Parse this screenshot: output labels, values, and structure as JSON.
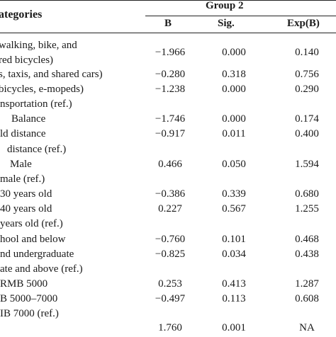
{
  "table": {
    "header": {
      "categories": "ategories",
      "group": "Group 2",
      "col_b": "B",
      "col_sig": "Sig.",
      "col_exp": "Exp(B)"
    },
    "rows": [
      {
        "label": "walking, bike, and",
        "b": "",
        "sig": "",
        "exp": ""
      },
      {
        "label": "red bicycles)",
        "b": "−1.966",
        "sig": "0.000",
        "exp": "0.140"
      },
      {
        "label": "s, taxis, and shared cars)",
        "b": "−0.280",
        "sig": "0.318",
        "exp": "0.756"
      },
      {
        "label": "bicycles, e-mopeds)",
        "b": "−1.238",
        "sig": "0.000",
        "exp": "0.290"
      },
      {
        "label": "nsportation (ref.)",
        "b": "",
        "sig": "",
        "exp": ""
      },
      {
        "label": "Balance",
        "b": "−1.746",
        "sig": "0.000",
        "exp": "0.174"
      },
      {
        "label": "ld distance",
        "b": "−0.917",
        "sig": "0.011",
        "exp": "0.400"
      },
      {
        "label": "distance (ref.)",
        "b": "",
        "sig": "",
        "exp": ""
      },
      {
        "label": "Male",
        "b": "0.466",
        "sig": "0.050",
        "exp": "1.594"
      },
      {
        "label": "male (ref.)",
        "b": "",
        "sig": "",
        "exp": ""
      },
      {
        "label": "30 years old",
        "b": "−0.386",
        "sig": "0.339",
        "exp": "0.680"
      },
      {
        "label": "40 years old",
        "b": "0.227",
        "sig": "0.567",
        "exp": "1.255"
      },
      {
        "label": "years old (ref.)",
        "b": "",
        "sig": "",
        "exp": ""
      },
      {
        "label": "hool and below",
        "b": "−0.760",
        "sig": "0.101",
        "exp": "0.468"
      },
      {
        "label": "nd undergraduate",
        "b": "−0.825",
        "sig": "0.034",
        "exp": "0.438"
      },
      {
        "label": "ate and above (ref.)",
        "b": "",
        "sig": "",
        "exp": ""
      },
      {
        "label": "RMB 5000",
        "b": "0.253",
        "sig": "0.413",
        "exp": "1.287"
      },
      {
        "label": "B 5000–7000",
        "b": "−0.497",
        "sig": "0.113",
        "exp": "0.608"
      },
      {
        "label": "IB 7000 (ref.)",
        "b": "",
        "sig": "",
        "exp": ""
      },
      {
        "label": "",
        "b": "1.760",
        "sig": "0.001",
        "exp": "NA"
      }
    ]
  }
}
